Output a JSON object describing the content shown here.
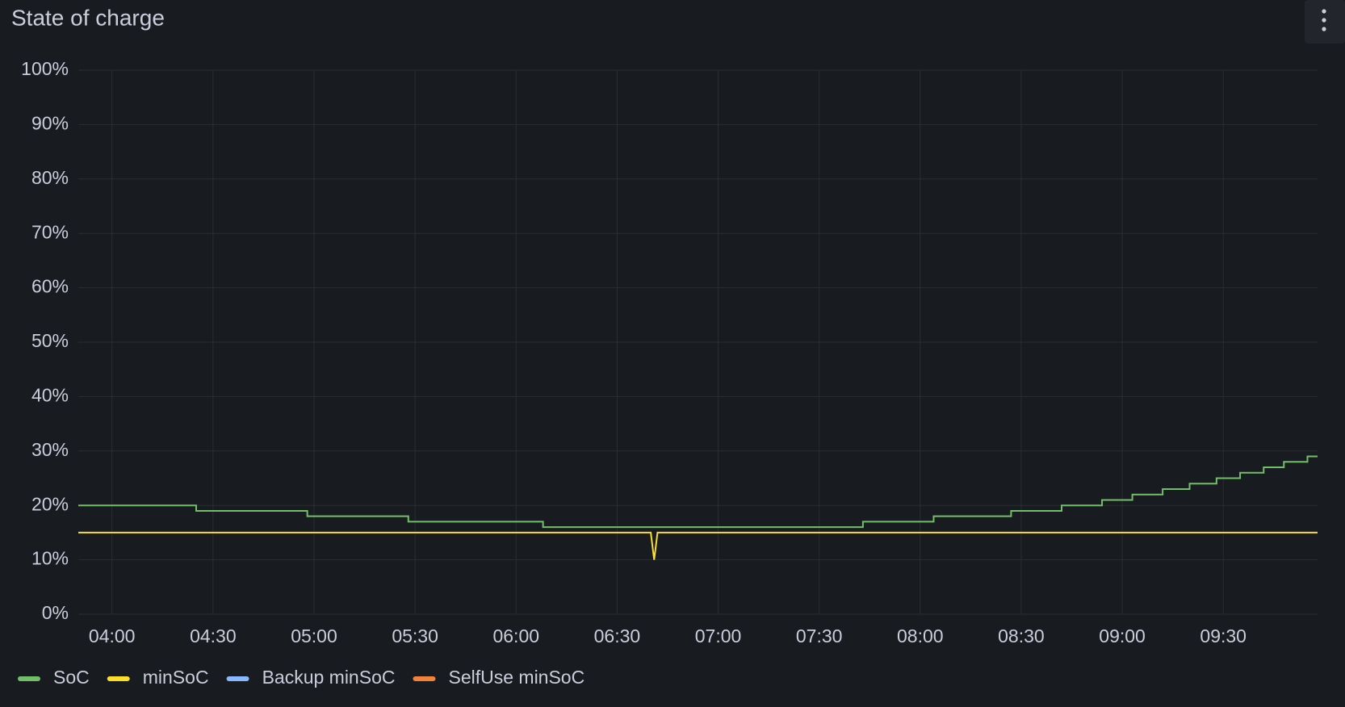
{
  "chart_data": {
    "type": "line",
    "title": "State of charge",
    "xlim": [
      "03:50",
      "09:58"
    ],
    "xticks": [
      "04:00",
      "04:30",
      "05:00",
      "05:30",
      "06:00",
      "06:30",
      "07:00",
      "07:30",
      "08:00",
      "08:30",
      "09:00",
      "09:30"
    ],
    "ylim": [
      0,
      100
    ],
    "yticks": [
      {
        "value": 0,
        "label": "0%"
      },
      {
        "value": 10,
        "label": "10%"
      },
      {
        "value": 20,
        "label": "20%"
      },
      {
        "value": 30,
        "label": "30%"
      },
      {
        "value": 40,
        "label": "40%"
      },
      {
        "value": 50,
        "label": "50%"
      },
      {
        "value": 60,
        "label": "60%"
      },
      {
        "value": 70,
        "label": "70%"
      },
      {
        "value": 80,
        "label": "80%"
      },
      {
        "value": 90,
        "label": "90%"
      },
      {
        "value": 100,
        "label": "100%"
      }
    ],
    "grid": true,
    "series": [
      {
        "name": "SoC",
        "color": "#73bf69",
        "step": "after",
        "x": [
          "03:50",
          "04:25",
          "04:58",
          "05:28",
          "06:08",
          "07:43",
          "08:04",
          "08:27",
          "08:42",
          "08:54",
          "09:03",
          "09:12",
          "09:20",
          "09:28",
          "09:35",
          "09:42",
          "09:48",
          "09:55",
          "09:58"
        ],
        "values": [
          20,
          19,
          18,
          17,
          16,
          17,
          18,
          19,
          20,
          21,
          22,
          23,
          24,
          25,
          26,
          27,
          28,
          29,
          29
        ]
      },
      {
        "name": "minSoC",
        "color": "#fade2a",
        "x": [
          "03:50",
          "06:40",
          "06:41",
          "06:42",
          "09:58"
        ],
        "values": [
          15,
          15,
          10,
          15,
          15
        ]
      },
      {
        "name": "Backup minSoC",
        "color": "#8ab8ff",
        "x": [],
        "values": []
      },
      {
        "name": "SelfUse minSoC",
        "color": "#f2823a",
        "x": [],
        "values": []
      }
    ]
  }
}
